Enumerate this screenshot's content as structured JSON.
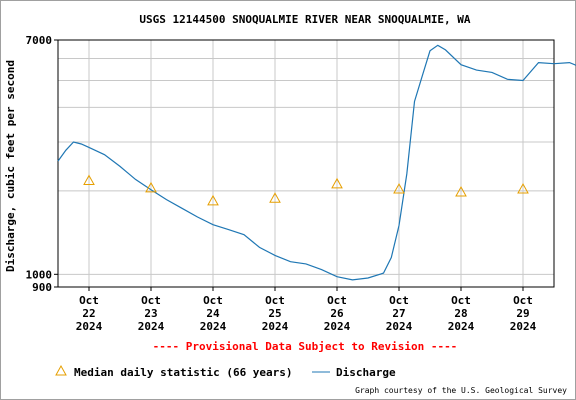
{
  "chart_data": {
    "type": "line",
    "title": "USGS 12144500 SNOQUALMIE RIVER NEAR SNOQUALMIE, WA",
    "ylabel": "Discharge, cubic feet per second",
    "xlabel": "",
    "yscale": "log",
    "ylim": [
      900,
      7000
    ],
    "y_tick_labels": [
      "7000",
      "1000",
      "900"
    ],
    "x_range": [
      "2024-10-21T12:00",
      "2024-10-29T12:00"
    ],
    "x_ticks": [
      {
        "date": "2024-10-22",
        "label": [
          "Oct",
          "22",
          "2024"
        ]
      },
      {
        "date": "2024-10-23",
        "label": [
          "Oct",
          "23",
          "2024"
        ]
      },
      {
        "date": "2024-10-24",
        "label": [
          "Oct",
          "24",
          "2024"
        ]
      },
      {
        "date": "2024-10-25",
        "label": [
          "Oct",
          "25",
          "2024"
        ]
      },
      {
        "date": "2024-10-26",
        "label": [
          "Oct",
          "26",
          "2024"
        ]
      },
      {
        "date": "2024-10-27",
        "label": [
          "Oct",
          "27",
          "2024"
        ]
      },
      {
        "date": "2024-10-28",
        "label": [
          "Oct",
          "28",
          "2024"
        ]
      },
      {
        "date": "2024-10-29",
        "label": [
          "Oct",
          "29",
          "2024"
        ]
      }
    ],
    "grid": true,
    "series": [
      {
        "name": "Discharge",
        "color": "#1f77b4",
        "style": "line",
        "points": [
          [
            "2024-10-21T12:00",
            2560
          ],
          [
            "2024-10-21T15:00",
            2800
          ],
          [
            "2024-10-21T18:00",
            3000
          ],
          [
            "2024-10-21T21:00",
            2950
          ],
          [
            "2024-10-22T00:00",
            2870
          ],
          [
            "2024-10-22T06:00",
            2700
          ],
          [
            "2024-10-22T12:00",
            2450
          ],
          [
            "2024-10-22T18:00",
            2200
          ],
          [
            "2024-10-23T00:00",
            2020
          ],
          [
            "2024-10-23T06:00",
            1860
          ],
          [
            "2024-10-23T12:00",
            1730
          ],
          [
            "2024-10-23T18:00",
            1610
          ],
          [
            "2024-10-24T00:00",
            1510
          ],
          [
            "2024-10-24T06:00",
            1450
          ],
          [
            "2024-10-24T12:00",
            1390
          ],
          [
            "2024-10-24T18:00",
            1250
          ],
          [
            "2024-10-25T00:00",
            1170
          ],
          [
            "2024-10-25T06:00",
            1110
          ],
          [
            "2024-10-25T12:00",
            1090
          ],
          [
            "2024-10-25T18:00",
            1040
          ],
          [
            "2024-10-26T00:00",
            980
          ],
          [
            "2024-10-26T06:00",
            955
          ],
          [
            "2024-10-26T12:00",
            970
          ],
          [
            "2024-10-26T18:00",
            1010
          ],
          [
            "2024-10-26T21:00",
            1150
          ],
          [
            "2024-10-27T00:00",
            1500
          ],
          [
            "2024-10-27T03:00",
            2300
          ],
          [
            "2024-10-27T06:00",
            4200
          ],
          [
            "2024-10-27T09:00",
            5200
          ],
          [
            "2024-10-27T12:00",
            6400
          ],
          [
            "2024-10-27T15:00",
            6700
          ],
          [
            "2024-10-27T18:00",
            6450
          ],
          [
            "2024-10-28T00:00",
            5700
          ],
          [
            "2024-10-28T06:00",
            5450
          ],
          [
            "2024-10-28T12:00",
            5350
          ],
          [
            "2024-10-28T18:00",
            5050
          ],
          [
            "2024-10-29T00:00",
            5000
          ],
          [
            "2024-10-29T06:00",
            5800
          ],
          [
            "2024-10-29T12:00",
            5750
          ],
          [
            "2024-10-29T18:00",
            5800
          ],
          [
            "2024-10-29T21:00",
            5650
          ]
        ]
      },
      {
        "name": "Median daily statistic (66 years)",
        "color": "#e69f00",
        "style": "marker-triangle",
        "points": [
          [
            "2024-10-22T00:00",
            2180
          ],
          [
            "2024-10-23T00:00",
            2050
          ],
          [
            "2024-10-24T00:00",
            1840
          ],
          [
            "2024-10-25T00:00",
            1880
          ],
          [
            "2024-10-26T00:00",
            2120
          ],
          [
            "2024-10-27T00:00",
            2030
          ],
          [
            "2024-10-28T00:00",
            1980
          ],
          [
            "2024-10-29T00:00",
            2030
          ]
        ]
      }
    ],
    "annotations": [
      "---- Provisional Data Subject to Revision ----"
    ],
    "legend_position": "bottom",
    "credit": "Graph courtesy of the U.S. Geological Survey"
  }
}
